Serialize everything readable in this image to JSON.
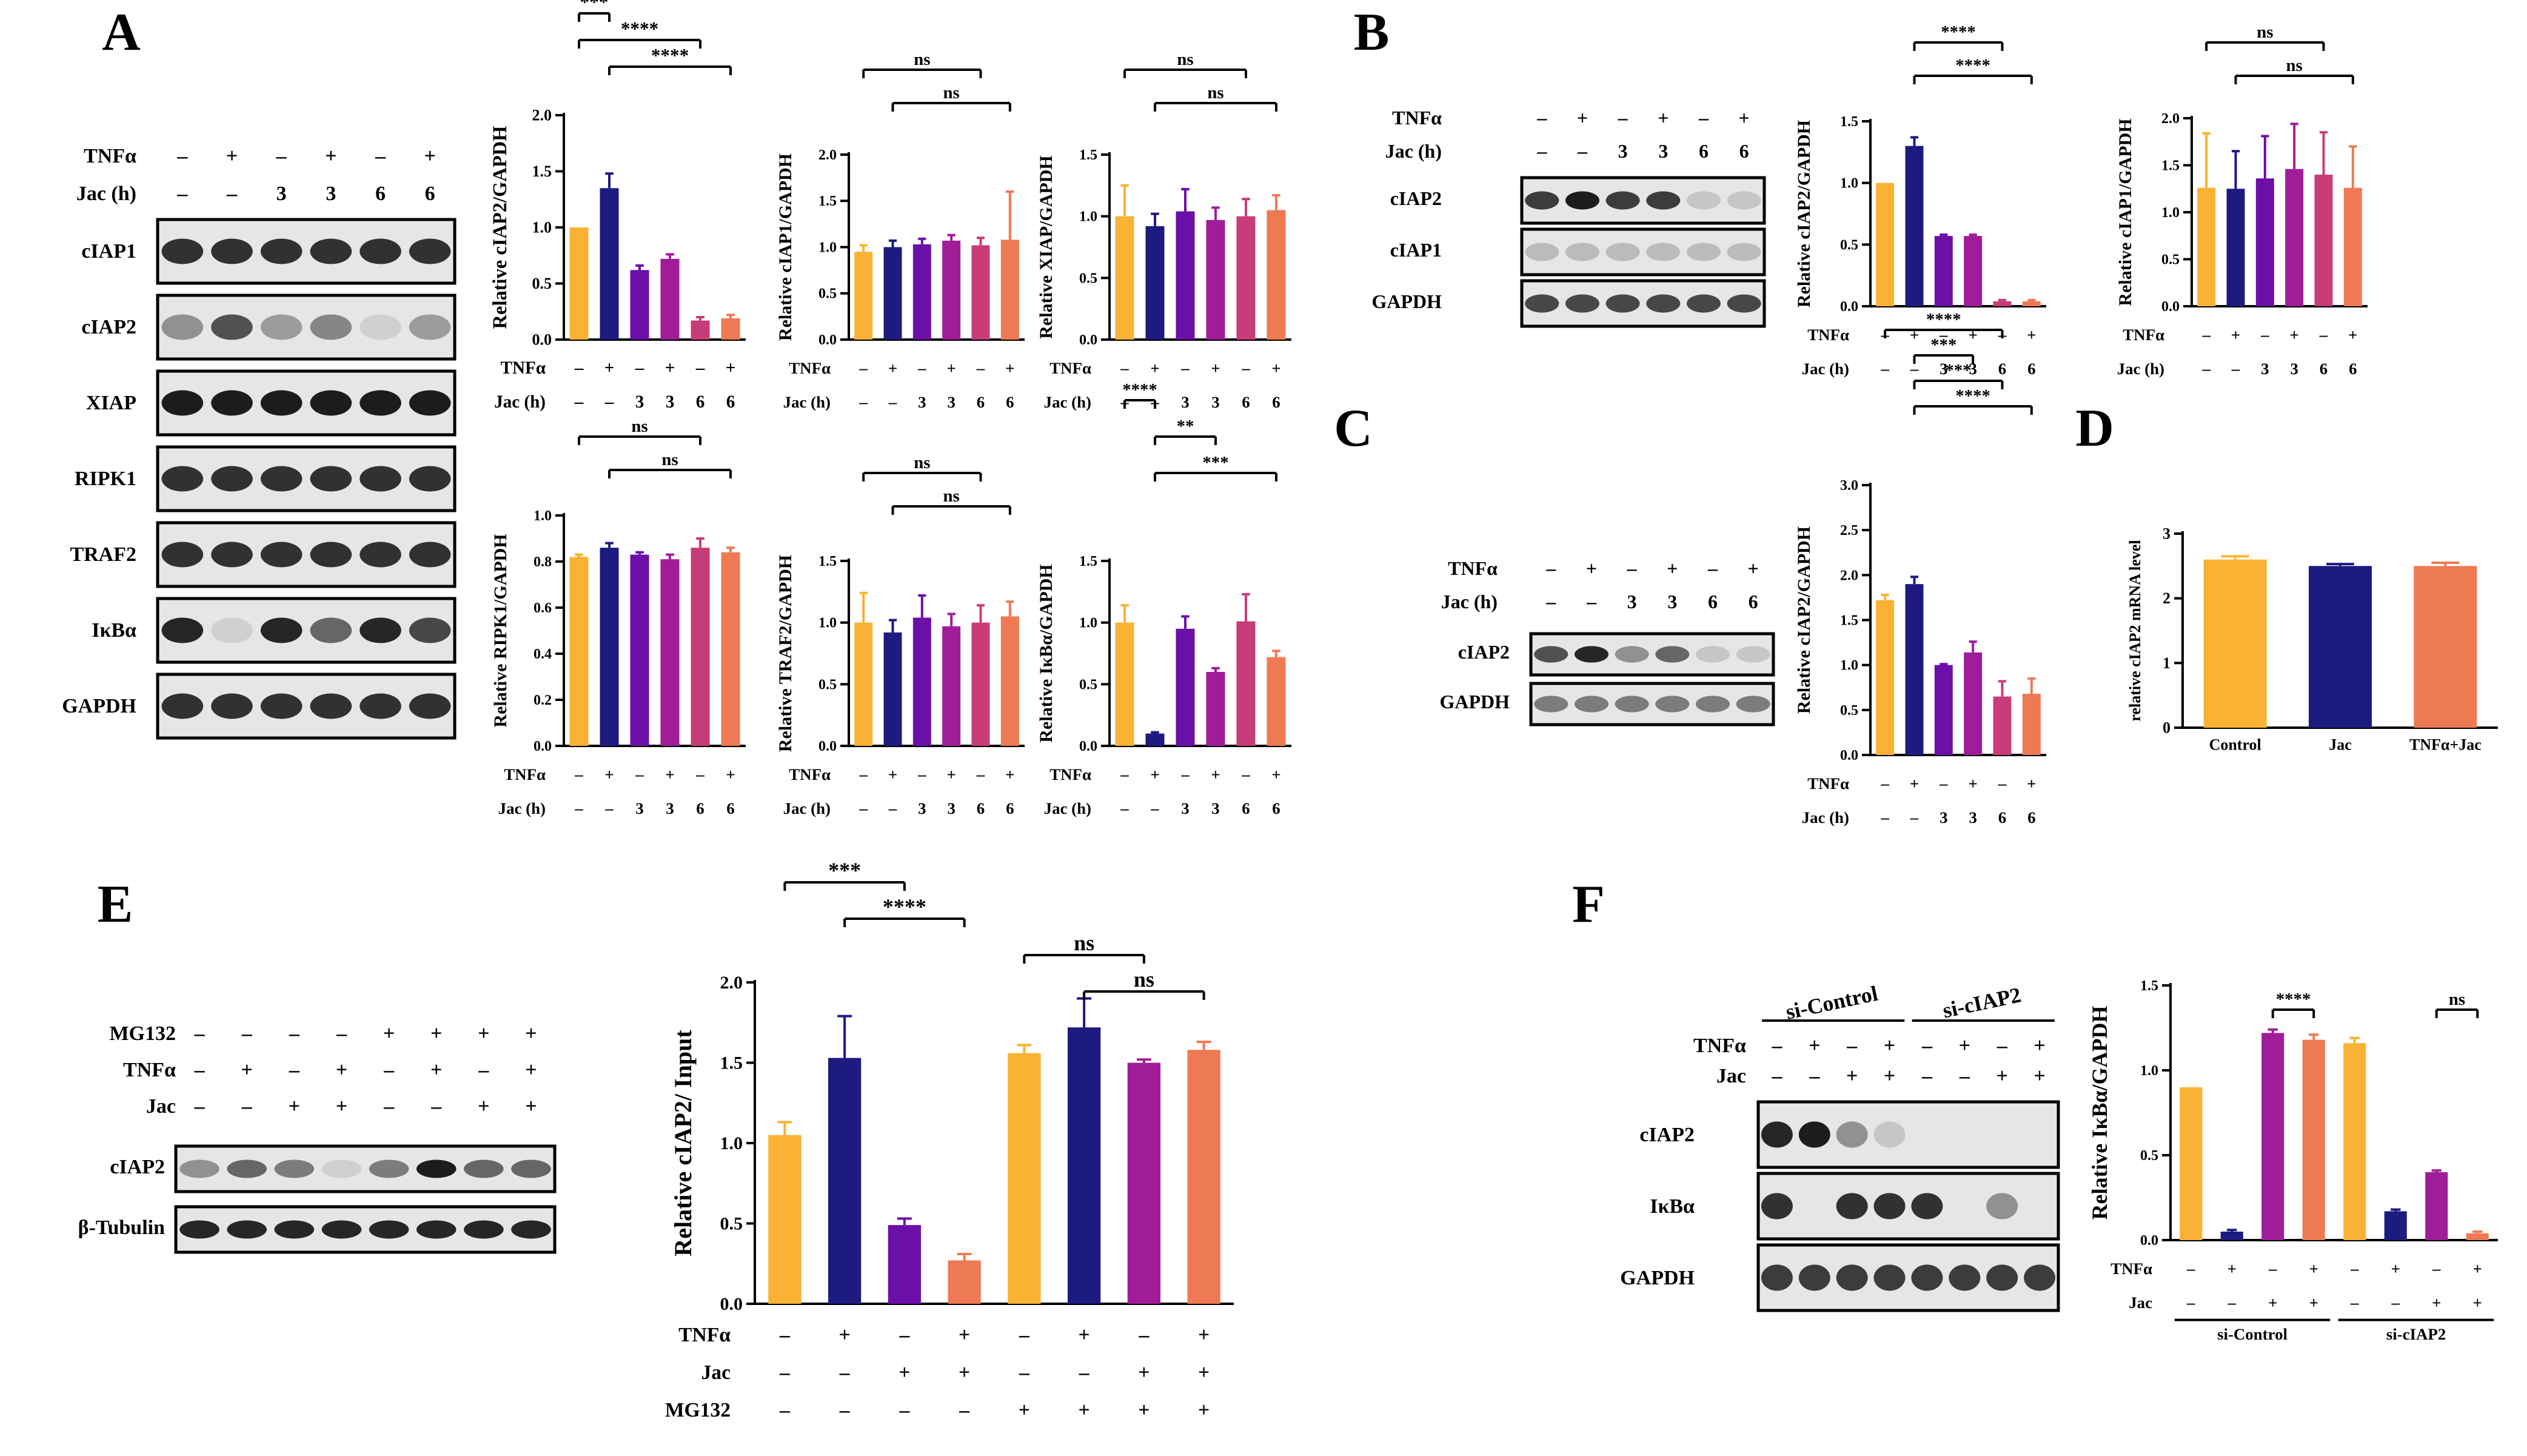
{
  "colors": {
    "orange": "#F9B233",
    "navy": "#1D1A80",
    "purple": "#6B0FA8",
    "magenta": "#A01C99",
    "pink": "#C83C78",
    "salmon": "#EE7A54"
  },
  "panel_letters": [
    "A",
    "B",
    "C",
    "D",
    "E",
    "F"
  ],
  "blots": {
    "A": {
      "conditions": [
        {
          "label": "TNFα",
          "values": [
            "–",
            "+",
            "–",
            "+",
            "–",
            "+"
          ]
        },
        {
          "label": "Jac (h)",
          "values": [
            "–",
            "–",
            "3",
            "3",
            "6",
            "6"
          ]
        }
      ],
      "bands": [
        "cIAP1",
        "cIAP2",
        "XIAP",
        "RIPK1",
        "TRAF2",
        "IκBα",
        "GAPDH"
      ]
    },
    "B": {
      "conditions": [
        {
          "label": "TNFα",
          "values": [
            "–",
            "+",
            "–",
            "+",
            "–",
            "+"
          ]
        },
        {
          "label": "Jac (h)",
          "values": [
            "–",
            "–",
            "3",
            "3",
            "6",
            "6"
          ]
        }
      ],
      "bands": [
        "cIAP2",
        "cIAP1",
        "GAPDH"
      ]
    },
    "C": {
      "conditions": [
        {
          "label": "TNFα",
          "values": [
            "–",
            "+",
            "–",
            "+",
            "–",
            "+"
          ]
        },
        {
          "label": "Jac (h)",
          "values": [
            "–",
            "–",
            "3",
            "3",
            "6",
            "6"
          ]
        }
      ],
      "bands": [
        "cIAP2",
        "GAPDH"
      ]
    },
    "E": {
      "conditions": [
        {
          "label": "MG132",
          "values": [
            "–",
            "–",
            "–",
            "–",
            "+",
            "+",
            "+",
            "+"
          ]
        },
        {
          "label": "TNFα",
          "values": [
            "–",
            "+",
            "–",
            "+",
            "–",
            "+",
            "–",
            "+"
          ]
        },
        {
          "label": "Jac",
          "values": [
            "–",
            "–",
            "+",
            "+",
            "–",
            "–",
            "+",
            "+"
          ]
        }
      ],
      "bands": [
        "cIAP2",
        "β-Tubulin"
      ]
    },
    "F": {
      "groups": [
        "si-Control",
        "si-cIAP2"
      ],
      "conditions": [
        {
          "label": "TNFα",
          "values": [
            "–",
            "+",
            "–",
            "+",
            "–",
            "+",
            "–",
            "+"
          ]
        },
        {
          "label": "Jac",
          "values": [
            "–",
            "–",
            "+",
            "+",
            "–",
            "–",
            "+",
            "+"
          ]
        }
      ],
      "bands": [
        "cIAP2",
        "IκBα",
        "GAPDH"
      ]
    }
  },
  "chart_data": [
    {
      "id": "A_cIAP2",
      "type": "bar",
      "ylabel": "Relative cIAP2/GAPDH",
      "ylim": [
        0,
        2.0
      ],
      "yticks": [
        "0.0",
        "0.5",
        "1.0",
        "1.5",
        "2.0"
      ],
      "values": [
        1.0,
        1.35,
        0.62,
        0.72,
        0.17,
        0.19
      ],
      "errors": [
        0.0,
        0.13,
        0.04,
        0.04,
        0.03,
        0.03
      ],
      "colors": [
        "#F9B233",
        "#1D1A80",
        "#6B0FA8",
        "#A01C99",
        "#C83C78",
        "#EE7A54"
      ],
      "xrows": [
        {
          "label": "TNFα",
          "values": [
            "–",
            "+",
            "–",
            "+",
            "–",
            "+"
          ]
        },
        {
          "label": "Jac (h)",
          "values": [
            "–",
            "–",
            "3",
            "3",
            "6",
            "6"
          ]
        }
      ],
      "brackets": [
        {
          "from": 0,
          "to": 1,
          "label": "***"
        },
        {
          "from": 0,
          "to": 4,
          "label": "****"
        },
        {
          "from": 1,
          "to": 5,
          "label": "****"
        }
      ]
    },
    {
      "id": "A_cIAP1",
      "type": "bar",
      "ylabel": "Relative cIAP1/GAPDH",
      "ylim": [
        0,
        2.0
      ],
      "yticks": [
        "0.0",
        "0.5",
        "1.0",
        "1.5",
        "2.0"
      ],
      "values": [
        0.95,
        1.0,
        1.03,
        1.07,
        1.02,
        1.08
      ],
      "errors": [
        0.07,
        0.07,
        0.06,
        0.06,
        0.08,
        0.52
      ],
      "colors": [
        "#F9B233",
        "#1D1A80",
        "#6B0FA8",
        "#A01C99",
        "#C83C78",
        "#EE7A54"
      ],
      "xrows": [
        {
          "label": "TNFα",
          "values": [
            "–",
            "+",
            "–",
            "+",
            "–",
            "+"
          ]
        },
        {
          "label": "Jac (h)",
          "values": [
            "–",
            "–",
            "3",
            "3",
            "6",
            "6"
          ]
        }
      ],
      "brackets": [
        {
          "from": 0,
          "to": 4,
          "label": "ns"
        },
        {
          "from": 1,
          "to": 5,
          "label": "ns"
        }
      ]
    },
    {
      "id": "A_XIAP",
      "type": "bar",
      "ylabel": "Relative XIAP/GAPDH",
      "ylim": [
        0,
        1.5
      ],
      "yticks": [
        "0.0",
        "0.5",
        "1.0",
        "1.5"
      ],
      "values": [
        1.0,
        0.92,
        1.04,
        0.97,
        1.0,
        1.05
      ],
      "errors": [
        0.25,
        0.1,
        0.18,
        0.1,
        0.14,
        0.12
      ],
      "colors": [
        "#F9B233",
        "#1D1A80",
        "#6B0FA8",
        "#A01C99",
        "#C83C78",
        "#EE7A54"
      ],
      "xrows": [
        {
          "label": "TNFα",
          "values": [
            "–",
            "+",
            "–",
            "+",
            "–",
            "+"
          ]
        },
        {
          "label": "Jac (h)",
          "values": [
            "–",
            "–",
            "3",
            "3",
            "6",
            "6"
          ]
        }
      ],
      "brackets": [
        {
          "from": 0,
          "to": 4,
          "label": "ns"
        },
        {
          "from": 1,
          "to": 5,
          "label": "ns"
        }
      ]
    },
    {
      "id": "A_RIPK1",
      "type": "bar",
      "ylabel": "Relative RIPK1/GAPDH",
      "ylim": [
        0,
        1.0
      ],
      "yticks": [
        "0.0",
        "0.2",
        "0.4",
        "0.6",
        "0.8",
        "1.0"
      ],
      "values": [
        0.82,
        0.86,
        0.83,
        0.81,
        0.86,
        0.84
      ],
      "errors": [
        0.01,
        0.02,
        0.01,
        0.02,
        0.04,
        0.02
      ],
      "colors": [
        "#F9B233",
        "#1D1A80",
        "#6B0FA8",
        "#A01C99",
        "#C83C78",
        "#EE7A54"
      ],
      "xrows": [
        {
          "label": "TNFα",
          "values": [
            "–",
            "+",
            "–",
            "+",
            "–",
            "+"
          ]
        },
        {
          "label": "Jac (h)",
          "values": [
            "–",
            "–",
            "3",
            "3",
            "6",
            "6"
          ]
        }
      ],
      "brackets": [
        {
          "from": 0,
          "to": 4,
          "label": "ns"
        },
        {
          "from": 1,
          "to": 5,
          "label": "ns"
        }
      ]
    },
    {
      "id": "A_TRAF2",
      "type": "bar",
      "ylabel": "Relative TRAF2/GAPDH",
      "ylim": [
        0,
        1.5
      ],
      "yticks": [
        "0.0",
        "0.5",
        "1.0",
        "1.5"
      ],
      "values": [
        1.0,
        0.92,
        1.04,
        0.97,
        1.0,
        1.05
      ],
      "errors": [
        0.24,
        0.1,
        0.18,
        0.1,
        0.14,
        0.12
      ],
      "colors": [
        "#F9B233",
        "#1D1A80",
        "#6B0FA8",
        "#A01C99",
        "#C83C78",
        "#EE7A54"
      ],
      "xrows": [
        {
          "label": "TNFα",
          "values": [
            "–",
            "+",
            "–",
            "+",
            "–",
            "+"
          ]
        },
        {
          "label": "Jac (h)",
          "values": [
            "–",
            "–",
            "3",
            "3",
            "6",
            "6"
          ]
        }
      ],
      "brackets": [
        {
          "from": 0,
          "to": 4,
          "label": "ns"
        },
        {
          "from": 1,
          "to": 5,
          "label": "ns"
        }
      ]
    },
    {
      "id": "A_IkBa",
      "type": "bar",
      "ylabel": "Relative IκBα/GAPDH",
      "ylim": [
        0,
        1.5
      ],
      "yticks": [
        "0.0",
        "0.5",
        "1.0",
        "1.5"
      ],
      "values": [
        1.0,
        0.1,
        0.95,
        0.6,
        1.01,
        0.72
      ],
      "errors": [
        0.14,
        0.01,
        0.1,
        0.03,
        0.22,
        0.05
      ],
      "colors": [
        "#F9B233",
        "#1D1A80",
        "#6B0FA8",
        "#A01C99",
        "#C83C78",
        "#EE7A54"
      ],
      "xrows": [
        {
          "label": "TNFα",
          "values": [
            "–",
            "+",
            "–",
            "+",
            "–",
            "+"
          ]
        },
        {
          "label": "Jac (h)",
          "values": [
            "–",
            "–",
            "3",
            "3",
            "6",
            "6"
          ]
        }
      ],
      "brackets": [
        {
          "from": 0,
          "to": 1,
          "label": "****"
        },
        {
          "from": 1,
          "to": 3,
          "label": "**"
        },
        {
          "from": 1,
          "to": 5,
          "label": "***"
        }
      ]
    },
    {
      "id": "B_cIAP2",
      "type": "bar",
      "ylabel": "Relative cIAP2/GAPDH",
      "ylim": [
        0,
        1.5
      ],
      "yticks": [
        "0.0",
        "0.5",
        "1.0",
        "1.5"
      ],
      "values": [
        1.0,
        1.3,
        0.57,
        0.57,
        0.04,
        0.04
      ],
      "errors": [
        0.0,
        0.07,
        0.01,
        0.01,
        0.01,
        0.01
      ],
      "colors": [
        "#F9B233",
        "#1D1A80",
        "#6B0FA8",
        "#A01C99",
        "#C83C78",
        "#EE7A54"
      ],
      "xrows": [
        {
          "label": "TNFα",
          "values": [
            "–",
            "+",
            "–",
            "+",
            "–",
            "+"
          ]
        },
        {
          "label": "Jac (h)",
          "values": [
            "–",
            "–",
            "3",
            "3",
            "6",
            "6"
          ]
        }
      ],
      "brackets": [
        {
          "from": 1,
          "to": 4,
          "label": "****"
        },
        {
          "from": 1,
          "to": 5,
          "label": "****"
        }
      ]
    },
    {
      "id": "B_cIAP1",
      "type": "bar",
      "ylabel": "Relative cIAP1/GAPDH",
      "ylim": [
        0,
        2.0
      ],
      "yticks": [
        "0.0",
        "0.5",
        "1.0",
        "1.5",
        "2.0"
      ],
      "values": [
        1.26,
        1.25,
        1.36,
        1.46,
        1.4,
        1.26
      ],
      "errors": [
        0.58,
        0.4,
        0.45,
        0.48,
        0.45,
        0.44
      ],
      "colors": [
        "#F9B233",
        "#1D1A80",
        "#6B0FA8",
        "#A01C99",
        "#C83C78",
        "#EE7A54"
      ],
      "xrows": [
        {
          "label": "TNFα",
          "values": [
            "–",
            "+",
            "–",
            "+",
            "–",
            "+"
          ]
        },
        {
          "label": "Jac (h)",
          "values": [
            "–",
            "–",
            "3",
            "3",
            "6",
            "6"
          ]
        }
      ],
      "brackets": [
        {
          "from": 0,
          "to": 4,
          "label": "ns"
        },
        {
          "from": 1,
          "to": 5,
          "label": "ns"
        }
      ]
    },
    {
      "id": "C_cIAP2",
      "type": "bar",
      "ylabel": "Relative cIAP2/GAPDH",
      "ylim": [
        0,
        3.0
      ],
      "yticks": [
        "0.0",
        "0.5",
        "1.0",
        "1.5",
        "2.0",
        "2.5",
        "3.0"
      ],
      "values": [
        1.72,
        1.9,
        1.0,
        1.14,
        0.65,
        0.68
      ],
      "errors": [
        0.06,
        0.08,
        0.01,
        0.12,
        0.17,
        0.17
      ],
      "colors": [
        "#F9B233",
        "#1D1A80",
        "#6B0FA8",
        "#A01C99",
        "#C83C78",
        "#EE7A54"
      ],
      "xrows": [
        {
          "label": "TNFα",
          "values": [
            "–",
            "+",
            "–",
            "+",
            "–",
            "+"
          ]
        },
        {
          "label": "Jac (h)",
          "values": [
            "–",
            "–",
            "3",
            "3",
            "6",
            "6"
          ]
        }
      ],
      "brackets": [
        {
          "from": 0,
          "to": 4,
          "label": "****"
        },
        {
          "from": 1,
          "to": 3,
          "label": "***"
        },
        {
          "from": 1,
          "to": 4,
          "label": "***"
        },
        {
          "from": 1,
          "to": 5,
          "label": "****"
        }
      ]
    },
    {
      "id": "D_mRNA",
      "type": "bar",
      "ylabel": "relative cIAP2 mRNA level",
      "ylim": [
        0,
        3
      ],
      "yticks": [
        "0",
        "1",
        "2",
        "3"
      ],
      "categories": [
        "Control",
        "Jac",
        "TNFα+Jac"
      ],
      "values": [
        2.6,
        2.5,
        2.5
      ],
      "errors": [
        0.05,
        0.03,
        0.05
      ],
      "colors": [
        "#F9B233",
        "#1D1A80",
        "#EE7A54"
      ],
      "xrows": [],
      "brackets": []
    },
    {
      "id": "E_cIAP2",
      "type": "bar",
      "ylabel": "Relative cIAP2/ Input",
      "ylim": [
        0,
        2.0
      ],
      "yticks": [
        "0.0",
        "0.5",
        "1.0",
        "1.5",
        "2.0"
      ],
      "values": [
        1.05,
        1.53,
        0.49,
        0.27,
        1.56,
        1.72,
        1.5,
        1.58
      ],
      "errors": [
        0.08,
        0.26,
        0.04,
        0.04,
        0.05,
        0.18,
        0.02,
        0.05
      ],
      "colors": [
        "#F9B233",
        "#1D1A80",
        "#6B0FA8",
        "#EE7A54",
        "#F9B233",
        "#1D1A80",
        "#A01C99",
        "#EE7A54"
      ],
      "xrows": [
        {
          "label": "TNFα",
          "values": [
            "–",
            "+",
            "–",
            "+",
            "–",
            "+",
            "–",
            "+"
          ]
        },
        {
          "label": "Jac",
          "values": [
            "–",
            "–",
            "+",
            "+",
            "–",
            "–",
            "+",
            "+"
          ]
        },
        {
          "label": "MG132",
          "values": [
            "–",
            "–",
            "–",
            "–",
            "+",
            "+",
            "+",
            "+"
          ]
        }
      ],
      "brackets": [
        {
          "from": 0,
          "to": 2,
          "label": "***"
        },
        {
          "from": 1,
          "to": 3,
          "label": "****"
        },
        {
          "from": 4,
          "to": 6,
          "label": "ns"
        },
        {
          "from": 5,
          "to": 7,
          "label": "ns"
        }
      ]
    },
    {
      "id": "F_IkBa",
      "type": "bar",
      "ylabel": "Relative IκBα/GAPDH",
      "ylim": [
        0,
        1.5
      ],
      "yticks": [
        "0.0",
        "0.5",
        "1.0",
        "1.5"
      ],
      "values": [
        0.9,
        0.05,
        1.22,
        1.18,
        1.16,
        0.17,
        0.4,
        0.04
      ],
      "errors": [
        0.0,
        0.01,
        0.02,
        0.03,
        0.03,
        0.01,
        0.01,
        0.01
      ],
      "colors": [
        "#F9B233",
        "#1D1A80",
        "#A01C99",
        "#EE7A54",
        "#F9B233",
        "#1D1A80",
        "#A01C99",
        "#EE7A54"
      ],
      "xrows": [
        {
          "label": "TNFα",
          "values": [
            "–",
            "+",
            "–",
            "+",
            "–",
            "+",
            "–",
            "+"
          ]
        },
        {
          "label": "Jac",
          "values": [
            "–",
            "–",
            "+",
            "+",
            "–",
            "–",
            "+",
            "+"
          ]
        }
      ],
      "groups": [
        "si-Control",
        "si-cIAP2"
      ],
      "brackets": [
        {
          "from": 2,
          "to": 3,
          "label": "****"
        },
        {
          "from": 6,
          "to": 7,
          "label": "ns"
        }
      ]
    }
  ]
}
